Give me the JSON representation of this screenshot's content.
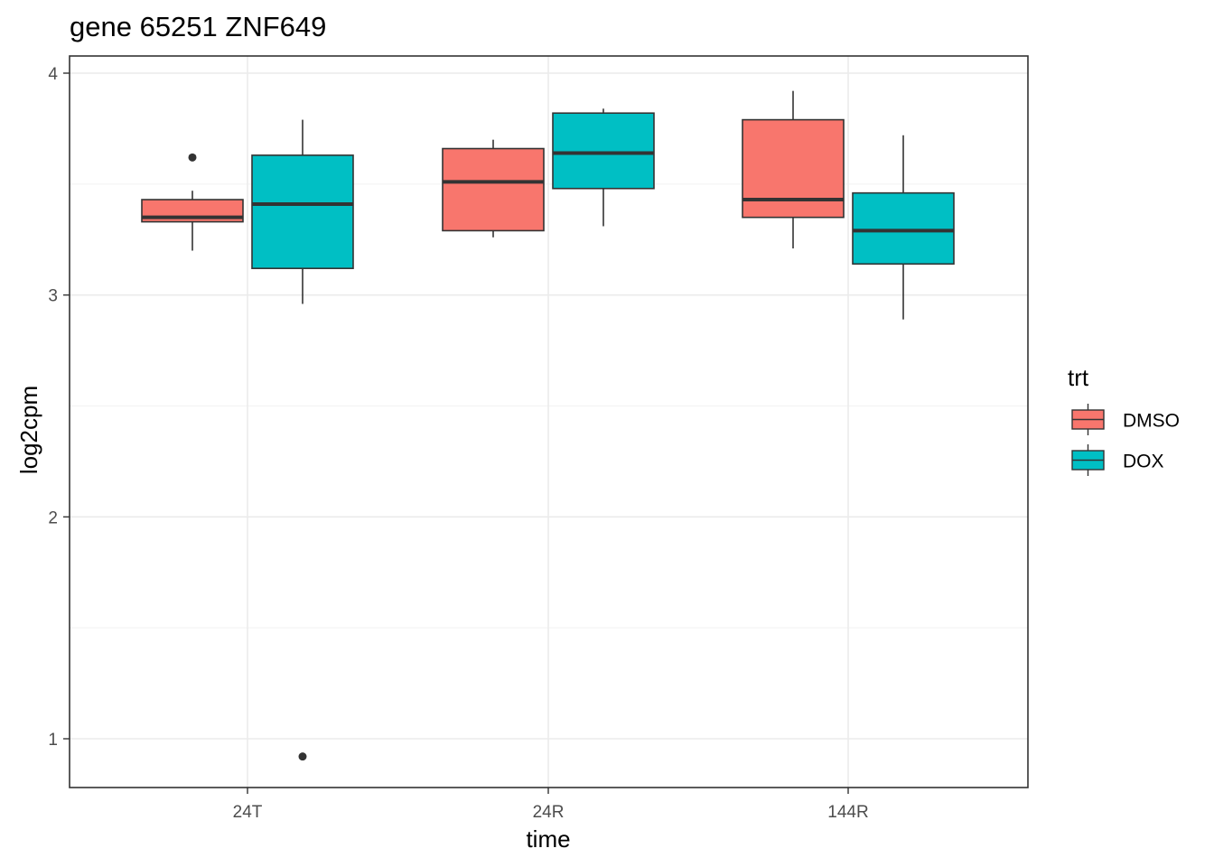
{
  "chart_data": {
    "type": "boxplot",
    "title": "gene 65251 ZNF649",
    "xlabel": "time",
    "ylabel": "log2cpm",
    "categories": [
      "24T",
      "24R",
      "144R"
    ],
    "yticks": [
      1,
      2,
      3,
      4
    ],
    "ylim": [
      0.78,
      4.05
    ],
    "grid": true,
    "legend": {
      "title": "trt",
      "placement": "right",
      "entries": [
        {
          "label": "DMSO",
          "color": "#F8766D"
        },
        {
          "label": "DOX",
          "color": "#00BFC4"
        }
      ]
    },
    "series": [
      {
        "name": "DMSO",
        "color": "#F8766D",
        "boxes": [
          {
            "category": "24T",
            "whisker_low": 3.2,
            "q1": 3.33,
            "median": 3.35,
            "q3": 3.43,
            "whisker_high": 3.47,
            "outliers": [
              3.62
            ]
          },
          {
            "category": "24R",
            "whisker_low": 3.26,
            "q1": 3.29,
            "median": 3.51,
            "q3": 3.66,
            "whisker_high": 3.7,
            "outliers": []
          },
          {
            "category": "144R",
            "whisker_low": 3.21,
            "q1": 3.35,
            "median": 3.43,
            "q3": 3.79,
            "whisker_high": 3.92,
            "outliers": []
          }
        ]
      },
      {
        "name": "DOX",
        "color": "#00BFC4",
        "boxes": [
          {
            "category": "24T",
            "whisker_low": 2.96,
            "q1": 3.12,
            "median": 3.41,
            "q3": 3.63,
            "whisker_high": 3.79,
            "outliers": [
              0.92
            ]
          },
          {
            "category": "24R",
            "whisker_low": 3.31,
            "q1": 3.48,
            "median": 3.64,
            "q3": 3.82,
            "whisker_high": 3.84,
            "outliers": []
          },
          {
            "category": "144R",
            "whisker_low": 2.89,
            "q1": 3.14,
            "median": 3.29,
            "q3": 3.46,
            "whisker_high": 3.72,
            "outliers": []
          }
        ]
      }
    ]
  }
}
